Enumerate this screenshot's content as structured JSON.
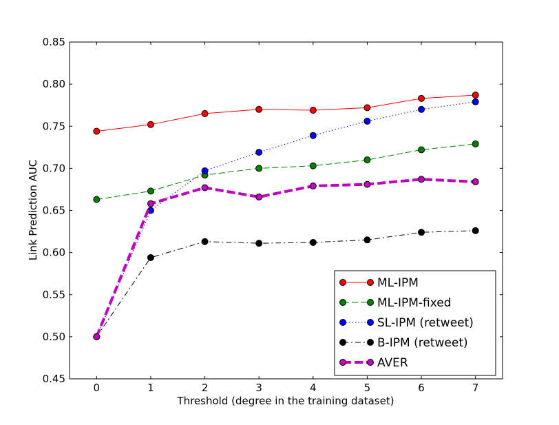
{
  "chart_data": {
    "type": "line",
    "xlabel": "Threshold (degree in the training dataset)",
    "ylabel": "Link Prediction AUC",
    "x": [
      0,
      1,
      2,
      3,
      4,
      5,
      6,
      7
    ],
    "xticks": [
      "0",
      "1",
      "2",
      "3",
      "4",
      "5",
      "6",
      "7"
    ],
    "yticks": [
      "0.45",
      "0.50",
      "0.55",
      "0.60",
      "0.65",
      "0.70",
      "0.75",
      "0.80",
      "0.85"
    ],
    "xlim": [
      -0.5,
      7.5
    ],
    "ylim": [
      0.45,
      0.85
    ],
    "grid": false,
    "legend_position": "lower-right",
    "series": [
      {
        "name": "ML-IPM",
        "color": "#ff0000",
        "dash": "solid",
        "values": [
          0.744,
          0.752,
          0.765,
          0.77,
          0.769,
          0.772,
          0.783,
          0.787
        ]
      },
      {
        "name": "ML-IPM-fixed",
        "color": "#008000",
        "dash": "dashed",
        "values": [
          0.663,
          0.673,
          0.692,
          0.7,
          0.703,
          0.71,
          0.722,
          0.729
        ]
      },
      {
        "name": "SL-IPM (retweet)",
        "color": "#0000ff",
        "dash": "dotted",
        "values": [
          0.5,
          0.65,
          0.697,
          0.719,
          0.739,
          0.756,
          0.77,
          0.779
        ]
      },
      {
        "name": "B-IPM (retweet)",
        "color": "#000000",
        "dash": "dashdot",
        "values": [
          0.5,
          0.594,
          0.613,
          0.611,
          0.612,
          0.615,
          0.624,
          0.626
        ]
      },
      {
        "name": "AVER",
        "color": "#bf00bf",
        "dash": "thick-dashed",
        "values": [
          0.5,
          0.658,
          0.677,
          0.666,
          0.679,
          0.681,
          0.687,
          0.684
        ]
      }
    ]
  }
}
